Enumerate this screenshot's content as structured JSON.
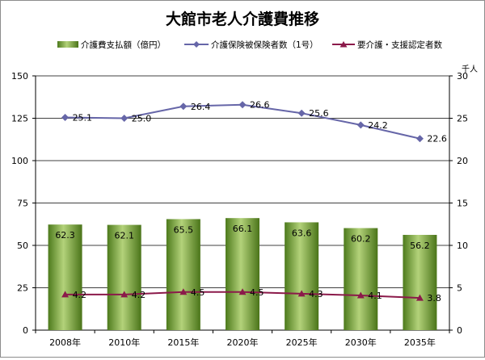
{
  "chart_data": {
    "type": "bar+line",
    "title": "大館市老人介護費推移",
    "categories": [
      "2008年",
      "2010年",
      "2015年",
      "2020年",
      "2025年",
      "2030年",
      "2035年"
    ],
    "series": [
      {
        "name": "介護費支払額（億円）",
        "type": "bar",
        "axis": "left",
        "values": [
          62.3,
          62.1,
          65.5,
          66.1,
          63.6,
          60.2,
          56.2
        ],
        "labels": [
          "62.3",
          "62.1",
          "65.5",
          "66.1",
          "63.6",
          "60.2",
          "56.2"
        ],
        "color": "#6b9a2e"
      },
      {
        "name": "介護保険被保険者数（1号）",
        "type": "line",
        "axis": "right",
        "values": [
          25.1,
          25.0,
          26.4,
          26.6,
          25.6,
          24.2,
          22.6
        ],
        "labels": [
          "25.1",
          "25.0",
          "26.4",
          "26.6",
          "25.6",
          "24.2",
          "22.6"
        ],
        "color": "#6666a8",
        "marker": "diamond"
      },
      {
        "name": "要介護・支援認定者数",
        "type": "line",
        "axis": "right",
        "values": [
          4.2,
          4.2,
          4.5,
          4.5,
          4.3,
          4.1,
          3.8
        ],
        "labels": [
          "4.2",
          "4.2",
          "4.5",
          "4.5",
          "4.3",
          "4.1",
          "3.8"
        ],
        "color": "#8b1a4a",
        "marker": "triangle"
      }
    ],
    "y_left": {
      "ylim": [
        0,
        150
      ],
      "ticks": [
        "0",
        "25",
        "50",
        "75",
        "100",
        "125",
        "150"
      ]
    },
    "y_right": {
      "ylim": [
        0,
        30
      ],
      "ticks": [
        "0",
        "5",
        "10",
        "15",
        "20",
        "25",
        "30"
      ],
      "unit": "千人"
    },
    "grid": true,
    "legend_position": "top"
  }
}
